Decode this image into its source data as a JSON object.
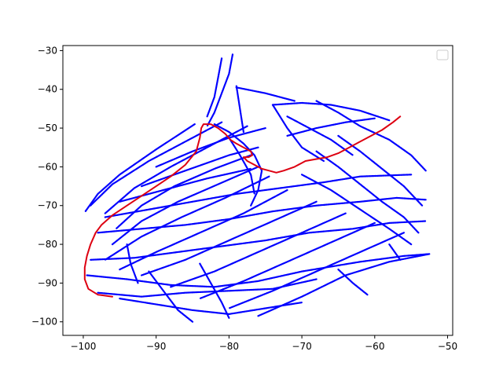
{
  "chart_data": {
    "type": "scatter",
    "title": "",
    "xlabel": "",
    "ylabel": "",
    "xlim": [
      -102.8,
      -49.3
    ],
    "ylim": [
      -103.5,
      -28.7
    ],
    "x_ticks": [
      -100,
      -90,
      -80,
      -70,
      -60,
      -50
    ],
    "y_ticks": [
      -100,
      -90,
      -80,
      -70,
      -60,
      -50,
      -40,
      -30
    ],
    "x_tick_labels": [
      "−100",
      "−90",
      "−80",
      "−70",
      "−60",
      "−50"
    ],
    "y_tick_labels": [
      "−100",
      "−90",
      "−80",
      "−70",
      "−60",
      "−50",
      "−40",
      "−30"
    ],
    "grid": false,
    "legend": {
      "position": "upper right",
      "entries": []
    },
    "series": [
      {
        "color": "#0000ff",
        "marker": "dot",
        "segments": [
          [
            [
              -84.7,
              -49.0
            ],
            [
              -90.0,
              -55.5
            ],
            [
              -95.0,
              -62.0
            ],
            [
              -98.0,
              -67.0
            ],
            [
              -99.7,
              -71.5
            ]
          ],
          [
            [
              -81.0,
              -48.5
            ],
            [
              -86.0,
              -53.5
            ],
            [
              -91.0,
              -58.5
            ],
            [
              -96.0,
              -64.5
            ],
            [
              -99.0,
              -70.0
            ]
          ],
          [
            [
              -77.5,
              -49.5
            ],
            [
              -83.0,
              -55.0
            ],
            [
              -88.0,
              -60.0
            ],
            [
              -93.0,
              -65.5
            ],
            [
              -97.0,
              -72.0
            ]
          ],
          [
            [
              -77.0,
              -57.0
            ],
            [
              -82.0,
              -60.5
            ],
            [
              -87.5,
              -65.0
            ],
            [
              -92.0,
              -70.0
            ],
            [
              -95.5,
              -76.0
            ]
          ],
          [
            [
              -76.0,
              -60.0
            ],
            [
              -81.5,
              -64.5
            ],
            [
              -87.0,
              -69.0
            ],
            [
              -92.0,
              -74.0
            ],
            [
              -96.0,
              -80.0
            ]
          ],
          [
            [
              -74.5,
              -62.5
            ],
            [
              -80.5,
              -68.0
            ],
            [
              -86.5,
              -73.0
            ],
            [
              -92.0,
              -78.0
            ],
            [
              -97.0,
              -84.0
            ]
          ],
          [
            [
              -72.0,
              -66.0
            ],
            [
              -78.0,
              -72.0
            ],
            [
              -84.0,
              -77.0
            ],
            [
              -90.0,
              -82.0
            ],
            [
              -95.0,
              -86.5
            ]
          ],
          [
            [
              -68.0,
              -69.0
            ],
            [
              -74.0,
              -74.0
            ],
            [
              -80.0,
              -79.0
            ],
            [
              -86.0,
              -84.0
            ],
            [
              -92.0,
              -88.0
            ]
          ],
          [
            [
              -64.0,
              -72.0
            ],
            [
              -70.0,
              -77.0
            ],
            [
              -76.0,
              -82.0
            ],
            [
              -82.0,
              -87.0
            ],
            [
              -88.0,
              -91.0
            ]
          ],
          [
            [
              -60.0,
              -74.5
            ],
            [
              -66.0,
              -79.5
            ],
            [
              -72.0,
              -84.5
            ],
            [
              -78.0,
              -89.5
            ],
            [
              -84.0,
              -94.0
            ]
          ],
          [
            [
              -56.0,
              -77.0
            ],
            [
              -62.0,
              -82.0
            ],
            [
              -68.0,
              -87.0
            ],
            [
              -74.0,
              -92.0
            ],
            [
              -80.0,
              -96.5
            ]
          ],
          [
            [
              -52.5,
              -82.5
            ],
            [
              -58.0,
              -84.5
            ],
            [
              -64.0,
              -88.0
            ],
            [
              -70.0,
              -93.5
            ],
            [
              -76.0,
              -98.5
            ]
          ],
          [
            [
              -99.5,
              -88.0
            ],
            [
              -94.0,
              -89.0
            ],
            [
              -88.0,
              -90.5
            ],
            [
              -82.0,
              -91.0
            ],
            [
              -76.0,
              -89.5
            ],
            [
              -70.0,
              -87.0
            ],
            [
              -62.0,
              -84.5
            ],
            [
              -56.0,
              -83.0
            ],
            [
              -52.5,
              -82.5
            ]
          ],
          [
            [
              -98.0,
              -92.5
            ],
            [
              -92.0,
              -93.5
            ],
            [
              -86.0,
              -92.5
            ],
            [
              -80.0,
              -92.0
            ],
            [
              -74.0,
              -91.5
            ],
            [
              -68.0,
              -89.0
            ]
          ],
          [
            [
              -99.0,
              -84.0
            ],
            [
              -93.0,
              -83.5
            ],
            [
              -87.0,
              -82.0
            ],
            [
              -81.0,
              -80.5
            ],
            [
              -75.0,
              -79.0
            ],
            [
              -69.0,
              -77.0
            ],
            [
              -63.0,
              -76.0
            ],
            [
              -58.0,
              -74.5
            ],
            [
              -53.0,
              -74.0
            ]
          ],
          [
            [
              -98.0,
              -77.0
            ],
            [
              -92.0,
              -76.0
            ],
            [
              -86.0,
              -75.0
            ],
            [
              -80.0,
              -73.5
            ],
            [
              -74.0,
              -71.5
            ],
            [
              -68.0,
              -70.0
            ],
            [
              -62.0,
              -69.0
            ],
            [
              -57.0,
              -68.0
            ],
            [
              -53.0,
              -68.5
            ]
          ],
          [
            [
              -97.0,
              -73.0
            ],
            [
              -91.0,
              -71.0
            ],
            [
              -85.0,
              -69.0
            ],
            [
              -79.0,
              -67.0
            ],
            [
              -73.0,
              -65.5
            ],
            [
              -67.0,
              -64.0
            ],
            [
              -62.0,
              -62.5
            ],
            [
              -55.0,
              -62.0
            ]
          ],
          [
            [
              -95.0,
              -69.0
            ],
            [
              -89.0,
              -66.0
            ],
            [
              -83.0,
              -63.0
            ],
            [
              -77.0,
              -60.5
            ]
          ],
          [
            [
              -92.0,
              -65.0
            ],
            [
              -86.0,
              -61.0
            ],
            [
              -80.0,
              -57.0
            ],
            [
              -76.0,
              -55.0
            ]
          ],
          [
            [
              -90.0,
              -60.0
            ],
            [
              -85.0,
              -56.0
            ],
            [
              -80.0,
              -52.5
            ],
            [
              -75.0,
              -50.0
            ]
          ],
          [
            [
              -70.0,
              -62.0
            ],
            [
              -66.0,
              -66.0
            ],
            [
              -62.0,
              -71.0
            ],
            [
              -58.0,
              -76.0
            ],
            [
              -55.0,
              -80.0
            ]
          ],
          [
            [
              -68.0,
              -56.0
            ],
            [
              -65.0,
              -60.0
            ],
            [
              -62.0,
              -64.5
            ],
            [
              -59.0,
              -69.0
            ],
            [
              -56.0,
              -73.0
            ],
            [
              -54.0,
              -77.0
            ]
          ],
          [
            [
              -65.0,
              -52.0
            ],
            [
              -62.0,
              -56.0
            ],
            [
              -59.0,
              -60.5
            ],
            [
              -56.0,
              -65.0
            ],
            [
              -53.5,
              -70.0
            ]
          ],
          [
            [
              -72.0,
              -47.0
            ],
            [
              -69.0,
              -50.0
            ],
            [
              -66.0,
              -53.0
            ],
            [
              -63.0,
              -57.0
            ]
          ],
          [
            [
              -68.0,
              -43.0
            ],
            [
              -65.0,
              -46.0
            ],
            [
              -62.0,
              -49.5
            ],
            [
              -58.0,
              -53.0
            ],
            [
              -55.0,
              -57.0
            ],
            [
              -53.0,
              -61.0
            ]
          ],
          [
            [
              -74.0,
              -44.0
            ],
            [
              -70.0,
              -43.5
            ],
            [
              -66.0,
              -44.0
            ],
            [
              -62.0,
              -45.5
            ],
            [
              -58.0,
              -48.0
            ]
          ],
          [
            [
              -74.0,
              -44.0
            ],
            [
              -72.0,
              -50.0
            ],
            [
              -70.0,
              -55.0
            ],
            [
              -67.0,
              -58.5
            ]
          ],
          [
            [
              -72.0,
              -52.0
            ],
            [
              -68.0,
              -50.0
            ],
            [
              -64.0,
              -48.5
            ],
            [
              -60.0,
              -47.5
            ]
          ],
          [
            [
              -79.5,
              -31.0
            ],
            [
              -80.0,
              -36.0
            ],
            [
              -81.0,
              -41.0
            ],
            [
              -82.0,
              -46.0
            ],
            [
              -83.0,
              -49.5
            ]
          ],
          [
            [
              -81.0,
              -32.0
            ],
            [
              -81.5,
              -37.0
            ],
            [
              -82.0,
              -42.0
            ],
            [
              -83.0,
              -47.0
            ]
          ],
          [
            [
              -78.0,
              -51.0
            ],
            [
              -78.5,
              -45.0
            ],
            [
              -79.0,
              -39.0
            ]
          ],
          [
            [
              -79.0,
              -39.5
            ],
            [
              -75.0,
              -41.0
            ],
            [
              -71.0,
              -43.0
            ]
          ],
          [
            [
              -82.0,
              -49.0
            ],
            [
              -80.0,
              -51.0
            ],
            [
              -78.0,
              -54.0
            ],
            [
              -76.5,
              -57.0
            ],
            [
              -75.5,
              -61.0
            ],
            [
              -76.0,
              -66.0
            ],
            [
              -77.0,
              -70.0
            ]
          ],
          [
            [
              -80.0,
              -52.5
            ],
            [
              -78.5,
              -57.0
            ],
            [
              -77.0,
              -62.0
            ],
            [
              -76.5,
              -67.0
            ]
          ],
          [
            [
              -91.0,
              -87.0
            ],
            [
              -89.0,
              -92.0
            ],
            [
              -87.0,
              -97.0
            ],
            [
              -85.0,
              -100.0
            ]
          ],
          [
            [
              -94.0,
              -80.0
            ],
            [
              -93.5,
              -85.0
            ],
            [
              -92.5,
              -90.0
            ]
          ],
          [
            [
              -84.0,
              -85.0
            ],
            [
              -82.5,
              -90.0
            ],
            [
              -81.0,
              -95.0
            ],
            [
              -80.0,
              -99.0
            ]
          ],
          [
            [
              -95.0,
              -94.0
            ],
            [
              -90.0,
              -95.5
            ],
            [
              -85.0,
              -97.0
            ],
            [
              -80.0,
              -98.0
            ],
            [
              -75.0,
              -96.5
            ],
            [
              -70.0,
              -95.0
            ]
          ],
          [
            [
              -65.0,
              -86.5
            ],
            [
              -63.0,
              -90.0
            ],
            [
              -61.0,
              -93.0
            ]
          ],
          [
            [
              -58.0,
              -80.0
            ],
            [
              -56.5,
              -84.0
            ]
          ]
        ]
      },
      {
        "color": "#dd0011",
        "marker": "line",
        "points": [
          [
            -96.0,
            -93.5
          ],
          [
            -98.0,
            -93.0
          ],
          [
            -99.3,
            -91.5
          ],
          [
            -99.8,
            -89.0
          ],
          [
            -99.8,
            -86.0
          ],
          [
            -99.5,
            -83.0
          ],
          [
            -99.0,
            -80.0
          ],
          [
            -98.3,
            -77.0
          ],
          [
            -97.5,
            -75.0
          ],
          [
            -96.0,
            -72.5
          ],
          [
            -94.0,
            -70.0
          ],
          [
            -92.0,
            -67.5
          ],
          [
            -90.0,
            -65.0
          ],
          [
            -88.0,
            -62.5
          ],
          [
            -86.0,
            -59.5
          ],
          [
            -84.5,
            -56.0
          ],
          [
            -84.0,
            -52.5
          ],
          [
            -83.8,
            -50.0
          ],
          [
            -83.5,
            -49.0
          ],
          [
            -82.5,
            -49.0
          ],
          [
            -81.5,
            -50.0
          ],
          [
            -80.5,
            -51.5
          ],
          [
            -79.8,
            -53.0
          ],
          [
            -79.0,
            -54.0
          ],
          [
            -78.0,
            -55.0
          ],
          [
            -77.0,
            -56.0
          ],
          [
            -76.8,
            -57.0
          ],
          [
            -77.3,
            -57.5
          ],
          [
            -78.0,
            -57.5
          ],
          [
            -77.5,
            -58.5
          ],
          [
            -76.5,
            -59.5
          ],
          [
            -75.5,
            -60.5
          ],
          [
            -74.5,
            -61.0
          ],
          [
            -73.5,
            -61.5
          ],
          [
            -72.5,
            -61.0
          ],
          [
            -71.0,
            -60.0
          ],
          [
            -69.5,
            -58.5
          ],
          [
            -68.0,
            -58.0
          ],
          [
            -66.5,
            -57.5
          ],
          [
            -65.0,
            -56.5
          ],
          [
            -63.5,
            -55.0
          ],
          [
            -62.0,
            -53.5
          ],
          [
            -60.5,
            -52.0
          ],
          [
            -59.0,
            -50.5
          ],
          [
            -57.5,
            -48.5
          ],
          [
            -56.5,
            -47.0
          ]
        ]
      }
    ]
  }
}
